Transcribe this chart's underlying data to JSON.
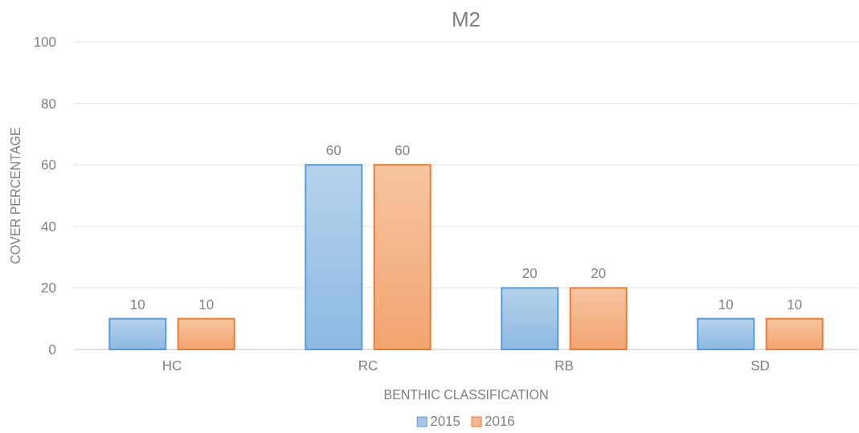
{
  "chart_data": {
    "type": "bar",
    "title": "M2",
    "xlabel": "BENTHIC CLASSIFICATION",
    "ylabel": "COVER PERCENTAGE",
    "categories": [
      "HC",
      "RC",
      "RB",
      "SD"
    ],
    "series": [
      {
        "name": "2015",
        "color": "#5b9bd5",
        "values": [
          10,
          60,
          20,
          10
        ]
      },
      {
        "name": "2016",
        "color": "#ed7d31",
        "values": [
          10,
          60,
          20,
          10
        ]
      }
    ],
    "ylim": [
      0,
      100
    ],
    "yticks": [
      0,
      20,
      40,
      60,
      80,
      100
    ],
    "grid": "y",
    "legend": "bottom",
    "data_labels": true
  }
}
